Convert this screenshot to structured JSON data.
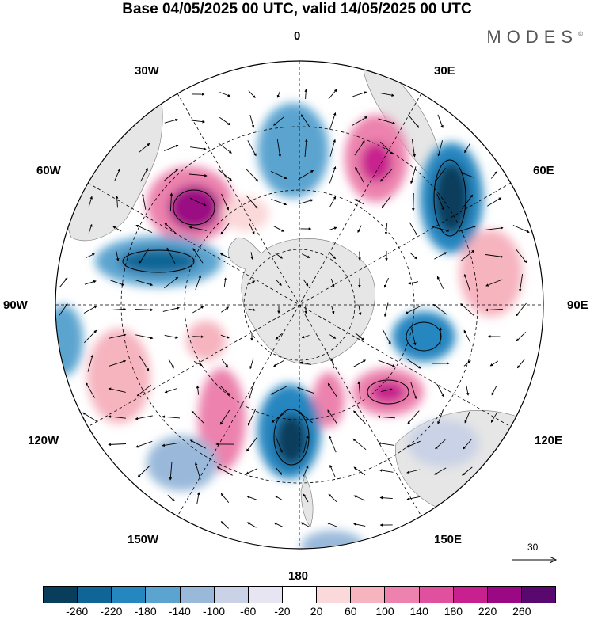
{
  "title": "Base 04/05/2025 00 UTC, valid 14/05/2025 00 UTC",
  "brand": "MODES",
  "brand_mark": "©",
  "longitude_labels": {
    "top": "0",
    "e30": "30E",
    "e60": "60E",
    "e90": "90E",
    "e120": "120E",
    "e150": "150E",
    "bottom": "180",
    "w150": "150W",
    "w120": "120W",
    "w90": "90W",
    "w60": "60W",
    "w30": "30W"
  },
  "vector_reference": {
    "value": "30"
  },
  "colorbar": {
    "colors": [
      "#083d5c",
      "#0f6696",
      "#2686c0",
      "#5ba4d0",
      "#9ab9da",
      "#c9d2e6",
      "#e7e5f1",
      "#ffffff",
      "#fbd8d9",
      "#f6b4bf",
      "#ec82ad",
      "#e1509f",
      "#c8208e",
      "#9b0883",
      "#58086f"
    ],
    "ticks": [
      "-260",
      "-220",
      "-180",
      "-140",
      "-100",
      "-60",
      "-20",
      "20",
      "60",
      "100",
      "140",
      "180",
      "220",
      "260"
    ]
  },
  "map_layers": {
    "ocean_color": "#ffffff",
    "land_color": "#e8e8e8",
    "grid_style": "dashed"
  }
}
